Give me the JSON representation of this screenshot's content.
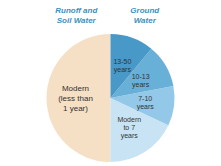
{
  "chart_data": {
    "type": "pie",
    "categories": [
      "Modern\n(less than\n1 year)",
      "Modern\nto 7\nyears",
      "7-10\nyears",
      "10-13\nyears",
      "13-50\nyears"
    ],
    "values": [
      50,
      18,
      10,
      11,
      11
    ],
    "colors": [
      "#f5dfc5",
      "#c8e4f4",
      "#94c8e8",
      "#68b0d8",
      "#4898c8"
    ],
    "annotations": [
      {
        "text": "Runoff and\nSoil Water",
        "color": "#3a90c0"
      },
      {
        "text": "Ground\nWater",
        "color": "#3a90c0"
      }
    ]
  }
}
